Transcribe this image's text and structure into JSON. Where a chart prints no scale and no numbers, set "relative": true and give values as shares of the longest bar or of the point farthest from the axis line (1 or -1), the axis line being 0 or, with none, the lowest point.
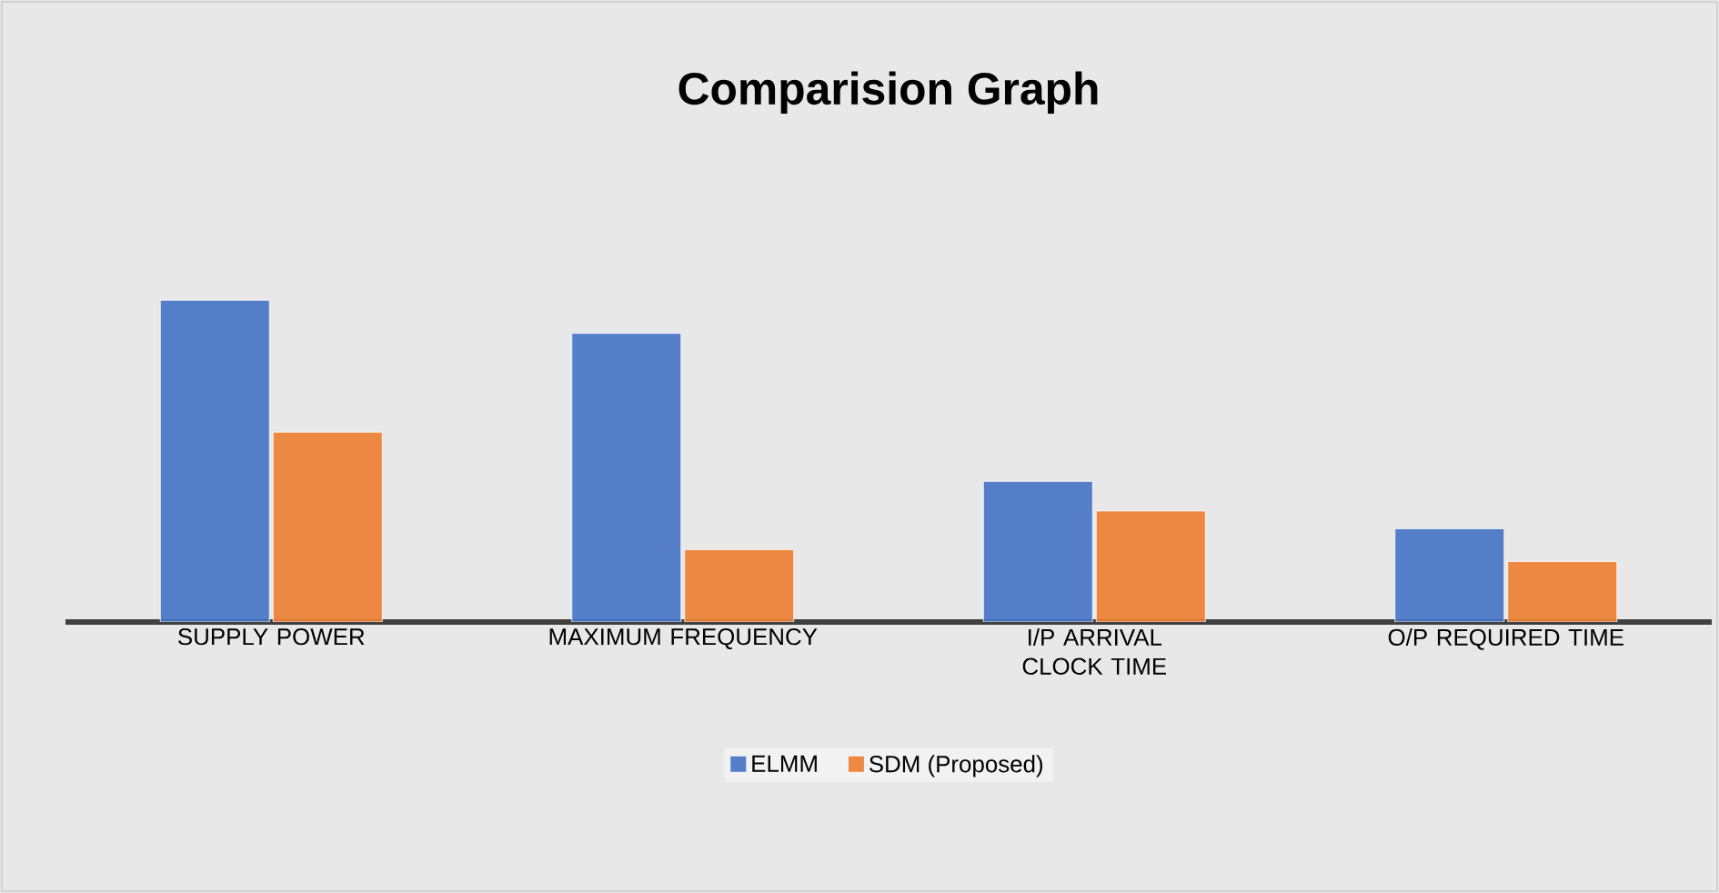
{
  "chart_data": {
    "type": "bar",
    "title": "Comparision Graph",
    "relative": true,
    "legend": "bottom",
    "categories": [
      "SUPPLY POWER",
      "MAXIMUM FREQUENCY",
      "I/P ARRIVAL CLOCK TIME",
      "O/P REQUIRED TIME"
    ],
    "series": [
      {
        "name": "ELMM",
        "color": "#4472c4",
        "values": [
          1,
          0.897,
          0.437,
          0.29
        ]
      },
      {
        "name": "SDM (Proposed)",
        "color": "#ed7d31",
        "values": [
          0.59,
          0.225,
          0.345,
          0.188
        ]
      }
    ]
  }
}
